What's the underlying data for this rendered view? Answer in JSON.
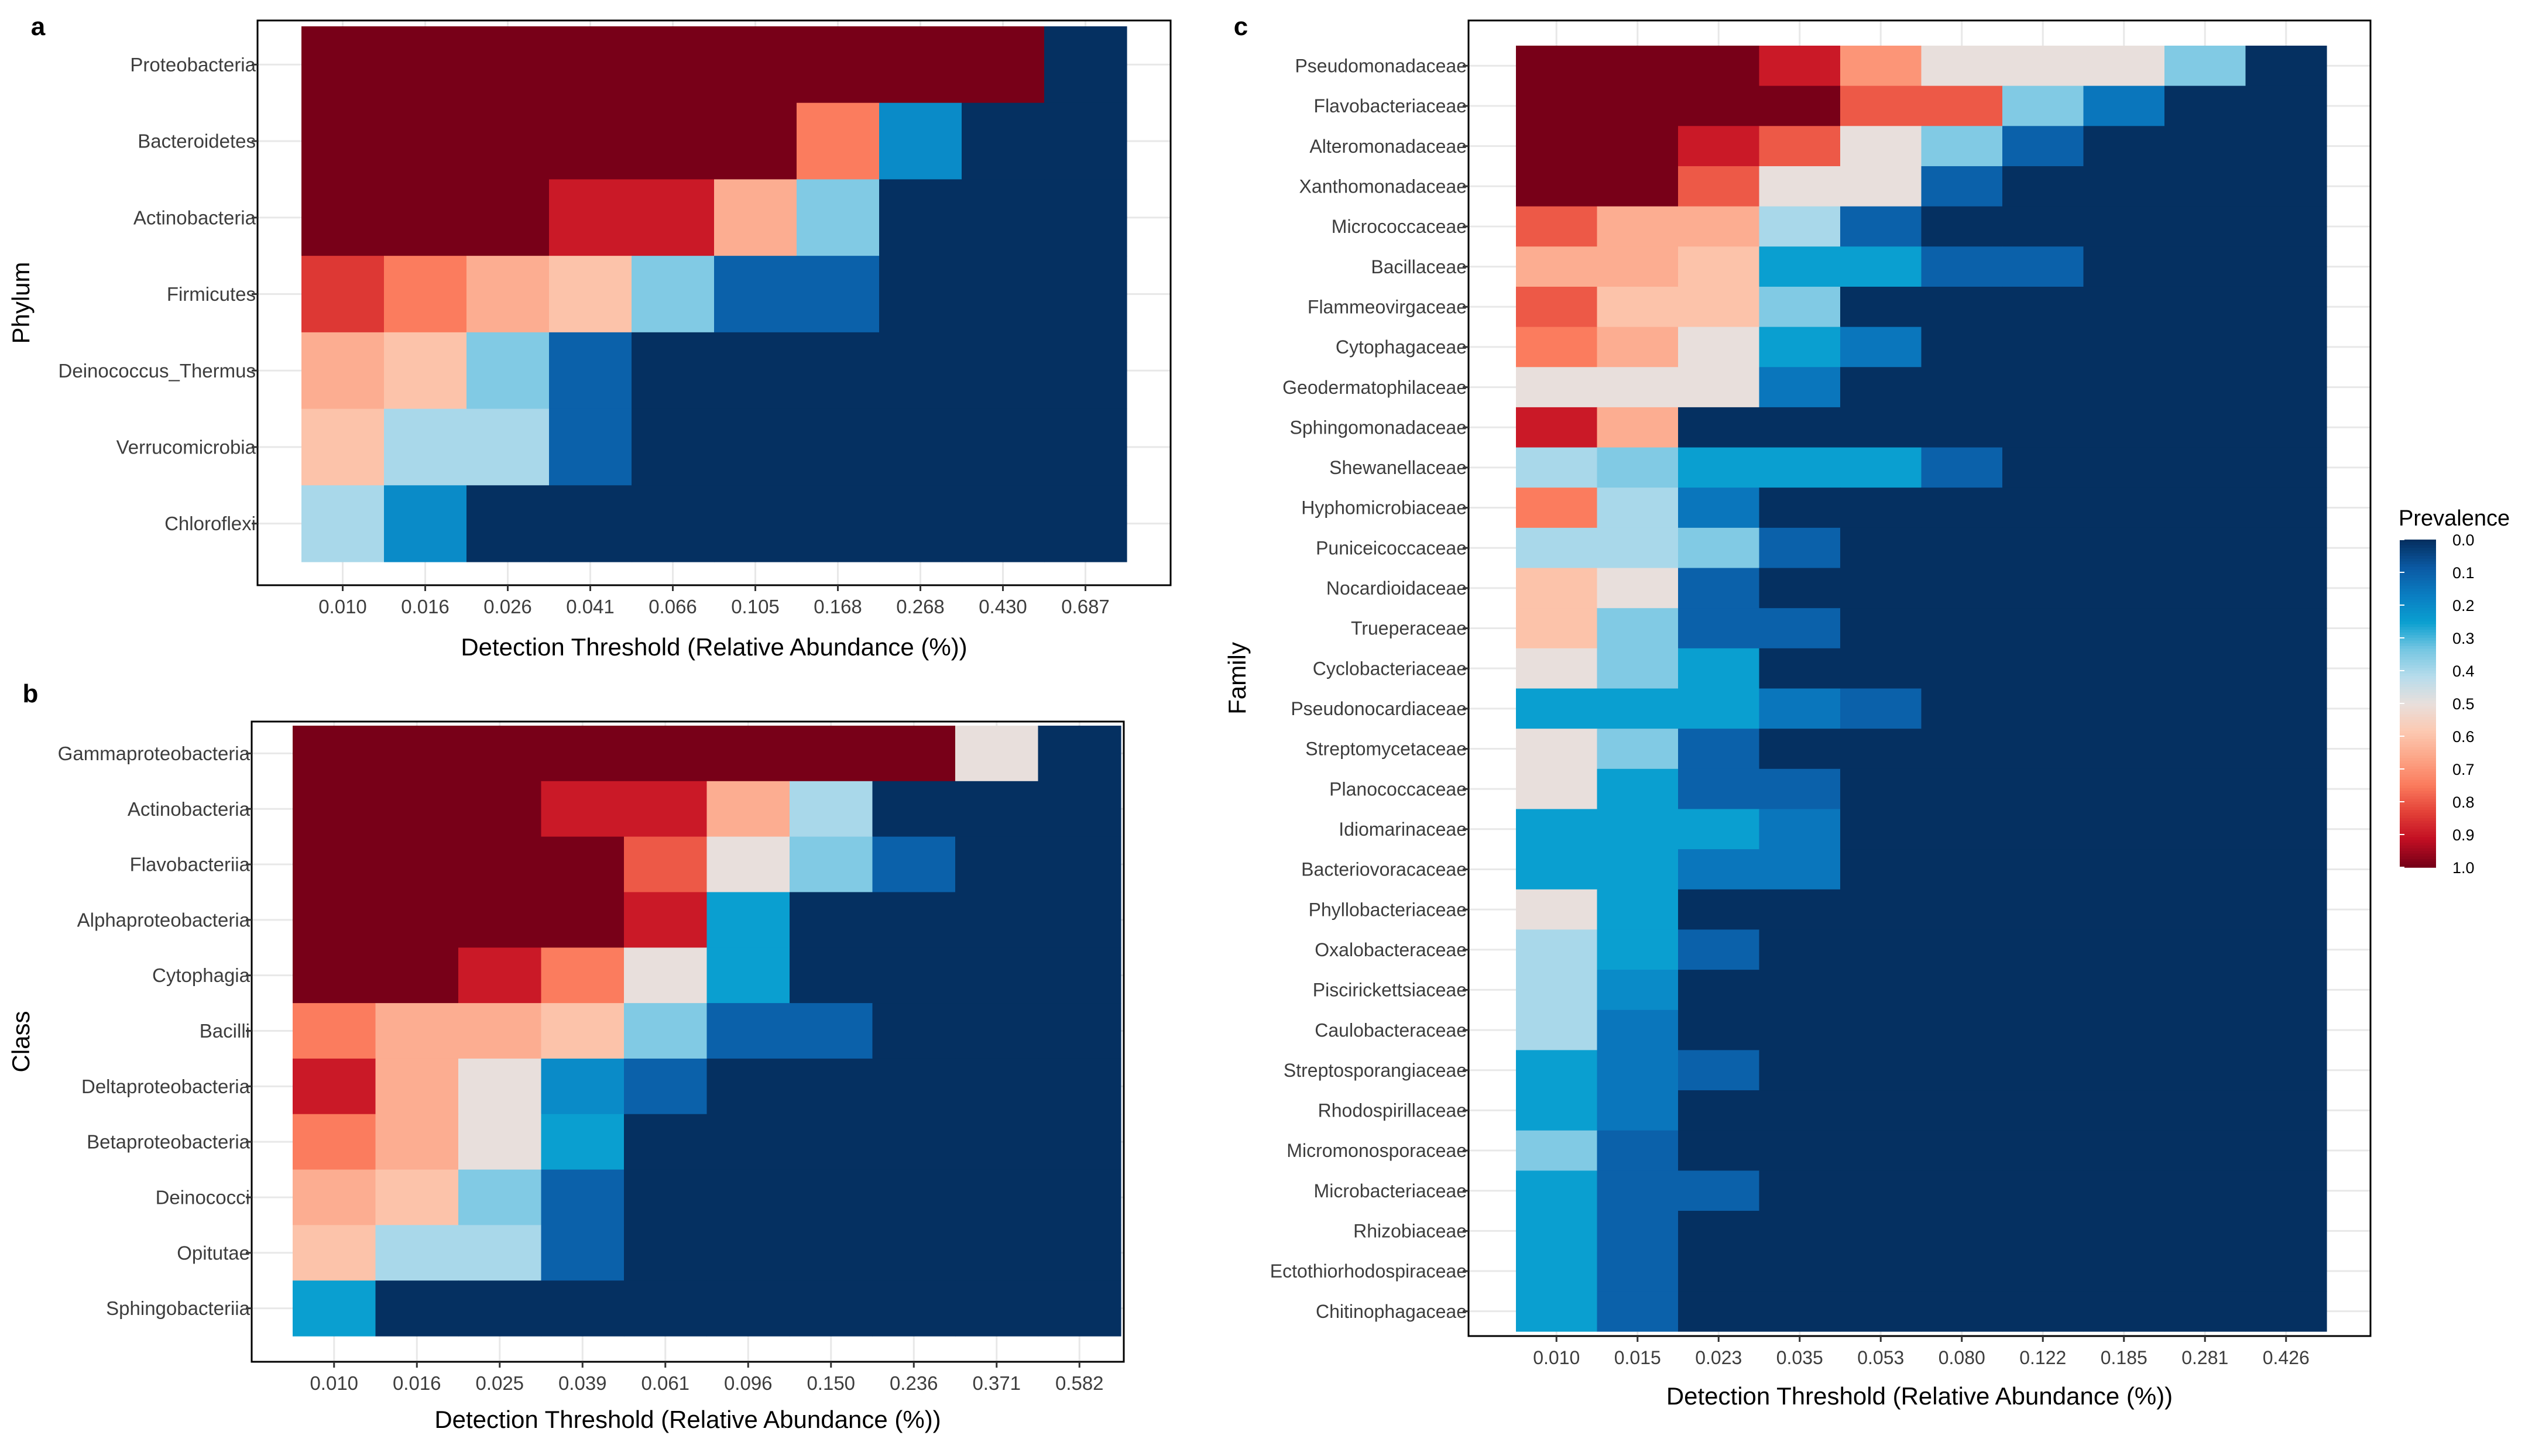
{
  "colors": {
    "scale": [
      "#053061",
      "#0b5aa4",
      "#0a7dc2",
      "#0a9fd0",
      "#74c6e2",
      "#b6dcec",
      "#e8dfdc",
      "#fccab3",
      "#fca688",
      "#fb7c5e",
      "#e44238",
      "#c30f23",
      "#780018"
    ],
    "panel_border": "#000000",
    "grid": "#e8e8e8",
    "tick_text": "#3d3d3d",
    "label_text": "#000000"
  },
  "legend": {
    "title": "Prevalence",
    "labels": [
      "0.0",
      "0.1",
      "0.2",
      "0.3",
      "0.4",
      "0.5",
      "0.6",
      "0.7",
      "0.8",
      "0.9",
      "1.0"
    ]
  },
  "chart_data": [
    {
      "panel_letter": "a",
      "type": "heatmap",
      "xlabel": "Detection Threshold (Relative Abundance (%))",
      "ylabel": "Phylum",
      "x": [
        "0.010",
        "0.016",
        "0.026",
        "0.041",
        "0.066",
        "0.105",
        "0.168",
        "0.268",
        "0.430",
        "0.687"
      ],
      "y": [
        "Proteobacteria",
        "Bacteroidetes",
        "Actinobacteria",
        "Firmicutes",
        "Deinococcus_Thermus",
        "Verrucomicrobia",
        "Chloroflexi"
      ],
      "values": [
        [
          1.0,
          1.0,
          1.0,
          1.0,
          1.0,
          1.0,
          1.0,
          1.0,
          1.0,
          0.0
        ],
        [
          1.0,
          1.0,
          1.0,
          1.0,
          1.0,
          1.0,
          0.75,
          0.2,
          0.0,
          0.0
        ],
        [
          1.0,
          1.0,
          1.0,
          0.9,
          0.9,
          0.65,
          0.35,
          0.0,
          0.0,
          0.0
        ],
        [
          0.85,
          0.75,
          0.65,
          0.6,
          0.35,
          0.1,
          0.1,
          0.0,
          0.0,
          0.0
        ],
        [
          0.65,
          0.6,
          0.35,
          0.1,
          0.0,
          0.0,
          0.0,
          0.0,
          0.0,
          0.0
        ],
        [
          0.6,
          0.4,
          0.4,
          0.1,
          0.0,
          0.0,
          0.0,
          0.0,
          0.0,
          0.0
        ],
        [
          0.4,
          0.2,
          0.0,
          0.0,
          0.0,
          0.0,
          0.0,
          0.0,
          0.0,
          0.0
        ]
      ]
    },
    {
      "panel_letter": "b",
      "type": "heatmap",
      "xlabel": "Detection Threshold (Relative Abundance (%))",
      "ylabel": "Class",
      "x": [
        "0.010",
        "0.016",
        "0.025",
        "0.039",
        "0.061",
        "0.096",
        "0.150",
        "0.236",
        "0.371",
        "0.582"
      ],
      "y": [
        "Gammaproteobacteria",
        "Actinobacteria",
        "Flavobacteriia",
        "Alphaproteobacteria",
        "Cytophagia",
        "Bacilli",
        "Deltaproteobacteria",
        "Betaproteobacteria",
        "Deinococci",
        "Opitutae",
        "Sphingobacteriia"
      ],
      "values": [
        [
          1.0,
          1.0,
          1.0,
          1.0,
          1.0,
          1.0,
          1.0,
          1.0,
          0.5,
          0.0
        ],
        [
          1.0,
          1.0,
          1.0,
          0.9,
          0.9,
          0.65,
          0.4,
          0.0,
          0.0,
          0.0
        ],
        [
          1.0,
          1.0,
          1.0,
          1.0,
          0.8,
          0.5,
          0.35,
          0.1,
          0.0,
          0.0
        ],
        [
          1.0,
          1.0,
          1.0,
          1.0,
          0.9,
          0.25,
          0.0,
          0.0,
          0.0,
          0.0
        ],
        [
          1.0,
          1.0,
          0.9,
          0.75,
          0.5,
          0.25,
          0.0,
          0.0,
          0.0,
          0.0
        ],
        [
          0.75,
          0.65,
          0.65,
          0.6,
          0.35,
          0.1,
          0.1,
          0.0,
          0.0,
          0.0
        ],
        [
          0.9,
          0.65,
          0.5,
          0.2,
          0.1,
          0.0,
          0.0,
          0.0,
          0.0,
          0.0
        ],
        [
          0.75,
          0.65,
          0.5,
          0.25,
          0.0,
          0.0,
          0.0,
          0.0,
          0.0,
          0.0
        ],
        [
          0.65,
          0.6,
          0.35,
          0.1,
          0.0,
          0.0,
          0.0,
          0.0,
          0.0,
          0.0
        ],
        [
          0.6,
          0.4,
          0.4,
          0.1,
          0.0,
          0.0,
          0.0,
          0.0,
          0.0,
          0.0
        ],
        [
          0.25,
          0.0,
          0.0,
          0.0,
          0.0,
          0.0,
          0.0,
          0.0,
          0.0,
          0.0
        ]
      ]
    },
    {
      "panel_letter": "c",
      "type": "heatmap",
      "xlabel": "Detection Threshold (Relative Abundance (%))",
      "ylabel": "Family",
      "x": [
        "0.010",
        "0.015",
        "0.023",
        "0.035",
        "0.053",
        "0.080",
        "0.122",
        "0.185",
        "0.281",
        "0.426"
      ],
      "y": [
        "Pseudomonadaceae",
        "Flavobacteriaceae",
        "Alteromonadaceae",
        "Xanthomonadaceae",
        "Micrococcaceae",
        "Bacillaceae",
        "Flammeovirgaceae",
        "Cytophagaceae",
        "Geodermatophilaceae",
        "Sphingomonadaceae",
        "Shewanellaceae",
        "Hyphomicrobiaceae",
        "Puniceicoccaceae",
        "Nocardioidaceae",
        "Trueperaceae",
        "Cyclobacteriaceae",
        "Pseudonocardiaceae",
        "Streptomycetaceae",
        "Planococcaceae",
        "Idiomarinaceae",
        "Bacteriovoracaceae",
        "Phyllobacteriaceae",
        "Oxalobacteraceae",
        "Piscirickettsiaceae",
        "Caulobacteraceae",
        "Streptosporangiaceae",
        "Rhodospirillaceae",
        "Micromonosporaceae",
        "Microbacteriaceae",
        "Rhizobiaceae",
        "Ectothiorhodospiraceae",
        "Chitinophagaceae"
      ],
      "values": [
        [
          1.0,
          1.0,
          1.0,
          0.9,
          0.7,
          0.5,
          0.5,
          0.5,
          0.35,
          0.0
        ],
        [
          1.0,
          1.0,
          1.0,
          1.0,
          0.8,
          0.8,
          0.35,
          0.15,
          0.0,
          0.0
        ],
        [
          1.0,
          1.0,
          0.9,
          0.8,
          0.5,
          0.35,
          0.1,
          0.0,
          0.0,
          0.0
        ],
        [
          1.0,
          1.0,
          0.8,
          0.5,
          0.5,
          0.1,
          0.0,
          0.0,
          0.0,
          0.0
        ],
        [
          0.8,
          0.65,
          0.65,
          0.4,
          0.1,
          0.0,
          0.0,
          0.0,
          0.0,
          0.0
        ],
        [
          0.65,
          0.65,
          0.6,
          0.25,
          0.25,
          0.1,
          0.1,
          0.0,
          0.0,
          0.0
        ],
        [
          0.8,
          0.6,
          0.6,
          0.35,
          0.0,
          0.0,
          0.0,
          0.0,
          0.0,
          0.0
        ],
        [
          0.75,
          0.65,
          0.5,
          0.25,
          0.15,
          0.0,
          0.0,
          0.0,
          0.0,
          0.0
        ],
        [
          0.5,
          0.5,
          0.5,
          0.15,
          0.0,
          0.0,
          0.0,
          0.0,
          0.0,
          0.0
        ],
        [
          0.9,
          0.65,
          0.0,
          0.0,
          0.0,
          0.0,
          0.0,
          0.0,
          0.0,
          0.0
        ],
        [
          0.4,
          0.35,
          0.25,
          0.25,
          0.25,
          0.1,
          0.0,
          0.0,
          0.0,
          0.0
        ],
        [
          0.75,
          0.4,
          0.15,
          0.0,
          0.0,
          0.0,
          0.0,
          0.0,
          0.0,
          0.0
        ],
        [
          0.4,
          0.4,
          0.35,
          0.1,
          0.0,
          0.0,
          0.0,
          0.0,
          0.0,
          0.0
        ],
        [
          0.6,
          0.5,
          0.1,
          0.0,
          0.0,
          0.0,
          0.0,
          0.0,
          0.0,
          0.0
        ],
        [
          0.6,
          0.35,
          0.1,
          0.1,
          0.0,
          0.0,
          0.0,
          0.0,
          0.0,
          0.0
        ],
        [
          0.5,
          0.35,
          0.25,
          0.0,
          0.0,
          0.0,
          0.0,
          0.0,
          0.0,
          0.0
        ],
        [
          0.25,
          0.25,
          0.25,
          0.15,
          0.1,
          0.0,
          0.0,
          0.0,
          0.0,
          0.0
        ],
        [
          0.5,
          0.35,
          0.1,
          0.0,
          0.0,
          0.0,
          0.0,
          0.0,
          0.0,
          0.0
        ],
        [
          0.5,
          0.25,
          0.1,
          0.1,
          0.0,
          0.0,
          0.0,
          0.0,
          0.0,
          0.0
        ],
        [
          0.25,
          0.25,
          0.25,
          0.15,
          0.0,
          0.0,
          0.0,
          0.0,
          0.0,
          0.0
        ],
        [
          0.25,
          0.25,
          0.15,
          0.15,
          0.0,
          0.0,
          0.0,
          0.0,
          0.0,
          0.0
        ],
        [
          0.5,
          0.25,
          0.0,
          0.0,
          0.0,
          0.0,
          0.0,
          0.0,
          0.0,
          0.0
        ],
        [
          0.4,
          0.25,
          0.1,
          0.0,
          0.0,
          0.0,
          0.0,
          0.0,
          0.0,
          0.0
        ],
        [
          0.4,
          0.2,
          0.0,
          0.0,
          0.0,
          0.0,
          0.0,
          0.0,
          0.0,
          0.0
        ],
        [
          0.4,
          0.15,
          0.0,
          0.0,
          0.0,
          0.0,
          0.0,
          0.0,
          0.0,
          0.0
        ],
        [
          0.25,
          0.15,
          0.1,
          0.0,
          0.0,
          0.0,
          0.0,
          0.0,
          0.0,
          0.0
        ],
        [
          0.25,
          0.15,
          0.0,
          0.0,
          0.0,
          0.0,
          0.0,
          0.0,
          0.0,
          0.0
        ],
        [
          0.35,
          0.1,
          0.0,
          0.0,
          0.0,
          0.0,
          0.0,
          0.0,
          0.0,
          0.0
        ],
        [
          0.25,
          0.1,
          0.1,
          0.0,
          0.0,
          0.0,
          0.0,
          0.0,
          0.0,
          0.0
        ],
        [
          0.25,
          0.1,
          0.0,
          0.0,
          0.0,
          0.0,
          0.0,
          0.0,
          0.0,
          0.0
        ],
        [
          0.25,
          0.1,
          0.0,
          0.0,
          0.0,
          0.0,
          0.0,
          0.0,
          0.0,
          0.0
        ],
        [
          0.25,
          0.1,
          0.0,
          0.0,
          0.0,
          0.0,
          0.0,
          0.0,
          0.0,
          0.0
        ]
      ]
    }
  ]
}
